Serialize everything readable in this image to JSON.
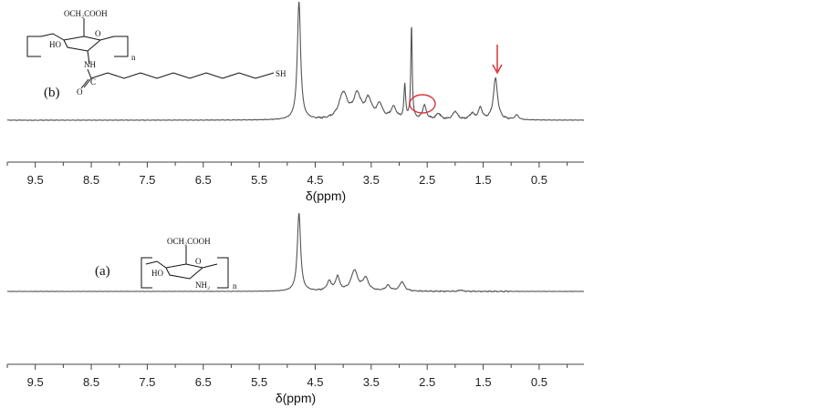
{
  "chart_data": [
    {
      "type": "line",
      "panel_label": "(b)",
      "xlabel": "δ(ppm)",
      "x_reversed": true,
      "xlim": [
        -0.3,
        10.0
      ],
      "ticks": [
        "9.5",
        "8.5",
        "7.5",
        "6.5",
        "5.5",
        "4.5",
        "3.5",
        "2.5",
        "1.5",
        "0.5"
      ],
      "tick_values": [
        9.5,
        8.5,
        7.5,
        6.5,
        5.5,
        4.5,
        3.5,
        2.5,
        1.5,
        0.5
      ],
      "peaks": [
        {
          "x": 4.79,
          "h": 1.0,
          "w": 0.035
        },
        {
          "x": 4.0,
          "h": 0.22,
          "w": 0.09
        },
        {
          "x": 3.75,
          "h": 0.2,
          "w": 0.08
        },
        {
          "x": 3.55,
          "h": 0.16,
          "w": 0.07
        },
        {
          "x": 3.35,
          "h": 0.12,
          "w": 0.06
        },
        {
          "x": 3.1,
          "h": 0.1,
          "w": 0.06
        },
        {
          "x": 2.9,
          "h": 0.28,
          "w": 0.018
        },
        {
          "x": 2.78,
          "h": 0.8,
          "w": 0.015
        },
        {
          "x": 2.55,
          "h": 0.12,
          "w": 0.04
        },
        {
          "x": 2.3,
          "h": 0.05,
          "w": 0.05
        },
        {
          "x": 2.0,
          "h": 0.07,
          "w": 0.05
        },
        {
          "x": 1.7,
          "h": 0.05,
          "w": 0.05
        },
        {
          "x": 1.55,
          "h": 0.1,
          "w": 0.04
        },
        {
          "x": 1.28,
          "h": 0.35,
          "w": 0.045
        },
        {
          "x": 0.9,
          "h": 0.04,
          "w": 0.04
        }
      ],
      "chem": {
        "substituent": "OCH₂COOH",
        "ring_o": "O",
        "ho": "HO",
        "nh": "NH",
        "c": "C",
        "carbonyl_o": "O",
        "sh": "SH",
        "repeat": "n"
      },
      "annotations": {
        "circle_color": "#d9343c",
        "arrow_color": "#d9343c"
      }
    },
    {
      "type": "line",
      "panel_label": "(a)",
      "xlabel": "δ(ppm)",
      "x_reversed": true,
      "xlim": [
        -0.3,
        10.0
      ],
      "ticks": [
        "9.5",
        "8.5",
        "7.5",
        "6.5",
        "5.5",
        "4.5",
        "3.5",
        "2.5",
        "1.5",
        "0.5"
      ],
      "tick_values": [
        9.5,
        8.5,
        7.5,
        6.5,
        5.5,
        4.5,
        3.5,
        2.5,
        1.5,
        0.5
      ],
      "peaks": [
        {
          "x": 4.79,
          "h": 1.0,
          "w": 0.035
        },
        {
          "x": 4.25,
          "h": 0.12,
          "w": 0.05
        },
        {
          "x": 4.1,
          "h": 0.18,
          "w": 0.04
        },
        {
          "x": 3.8,
          "h": 0.26,
          "w": 0.07
        },
        {
          "x": 3.6,
          "h": 0.16,
          "w": 0.06
        },
        {
          "x": 3.2,
          "h": 0.07,
          "w": 0.05
        },
        {
          "x": 2.95,
          "h": 0.12,
          "w": 0.05
        },
        {
          "x": 1.9,
          "h": 0.02,
          "w": 0.03
        }
      ],
      "chem": {
        "substituent": "OCH₂COOH",
        "ring_o": "O",
        "ho": "HO",
        "nh": "NH₂",
        "repeat": "n"
      }
    }
  ]
}
